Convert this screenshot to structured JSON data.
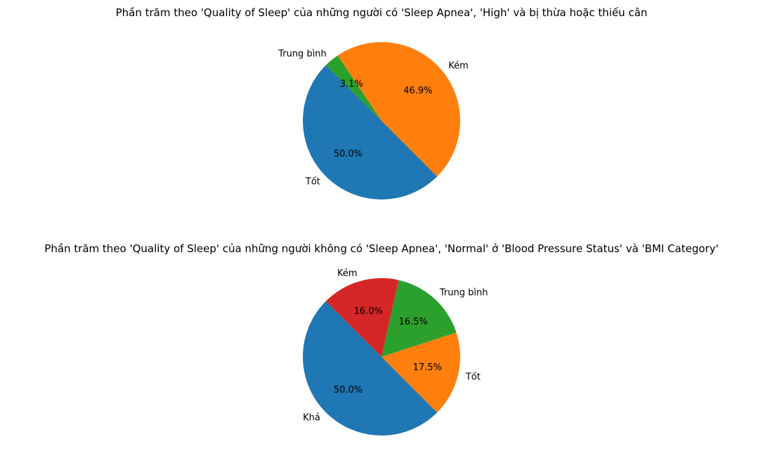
{
  "chart_data": [
    {
      "type": "pie",
      "title": "Phần trăm theo 'Quality of Sleep' của những người có 'Sleep Apnea', 'High' và bị thừa hoặc thiếu cân",
      "slices": [
        {
          "label": "Tốt",
          "value": 50.0,
          "pct_label": "50.0%",
          "color": "#1f77b4"
        },
        {
          "label": "Kém",
          "value": 46.9,
          "pct_label": "46.9%",
          "color": "#ff7f0e"
        },
        {
          "label": "Trung bình",
          "value": 3.1,
          "pct_label": "3.1%",
          "color": "#2ca02c"
        }
      ]
    },
    {
      "type": "pie",
      "title": "Phần trăm theo 'Quality of Sleep' của những người không có 'Sleep Apnea', 'Normal' ở 'Blood Pressure Status' và 'BMI Category'",
      "slices": [
        {
          "label": "Khá",
          "value": 50.0,
          "pct_label": "50.0%",
          "color": "#1f77b4"
        },
        {
          "label": "Tốt",
          "value": 17.5,
          "pct_label": "17.5%",
          "color": "#ff7f0e"
        },
        {
          "label": "Trung bình",
          "value": 16.5,
          "pct_label": "16.5%",
          "color": "#2ca02c"
        },
        {
          "label": "Kém",
          "value": 16.0,
          "pct_label": "16.0%",
          "color": "#d62728"
        }
      ]
    }
  ]
}
